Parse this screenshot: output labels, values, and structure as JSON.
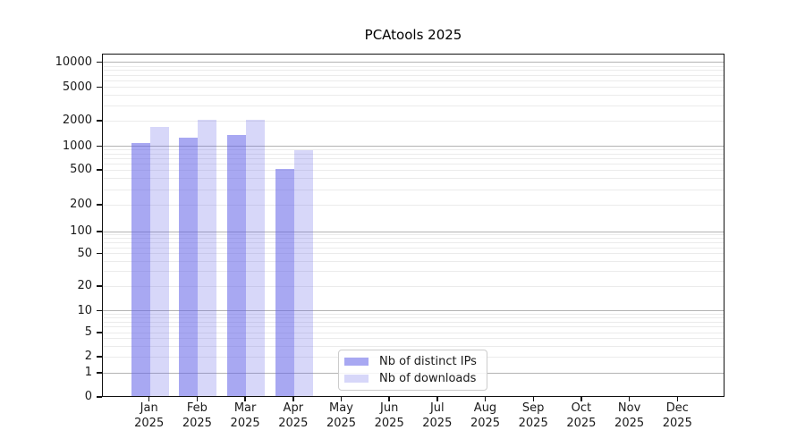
{
  "title": "PCAtools 2025",
  "chart_data": {
    "type": "bar",
    "title": "PCAtools 2025",
    "categories": [
      "Jan",
      "Feb",
      "Mar",
      "Apr",
      "May",
      "Jun",
      "Jul",
      "Aug",
      "Sep",
      "Oct",
      "Nov",
      "Dec"
    ],
    "category_year": "2025",
    "series": [
      {
        "name": "Nb of distinct IPs",
        "color": "rgba(97,97,232,0.55)",
        "values": [
          1075,
          1245,
          1330,
          505,
          0,
          0,
          0,
          0,
          0,
          0,
          0,
          0
        ]
      },
      {
        "name": "Nb of downloads",
        "color": "rgba(97,97,232,0.25)",
        "values": [
          1660,
          2000,
          2000,
          865,
          0,
          0,
          0,
          0,
          0,
          0,
          0,
          0
        ]
      }
    ],
    "y_ticks": [
      0,
      1,
      2,
      5,
      10,
      20,
      50,
      100,
      200,
      500,
      1000,
      2000,
      5000,
      10000
    ],
    "y_scale": "symlog",
    "ylim": [
      0,
      10000
    ],
    "grid": true,
    "legend_position": "lower center",
    "colors": {
      "major_grid": "#b3b3b3",
      "minor_grid": "#ebebeb",
      "spine": "#111111",
      "text": "#1a1a1a"
    }
  }
}
